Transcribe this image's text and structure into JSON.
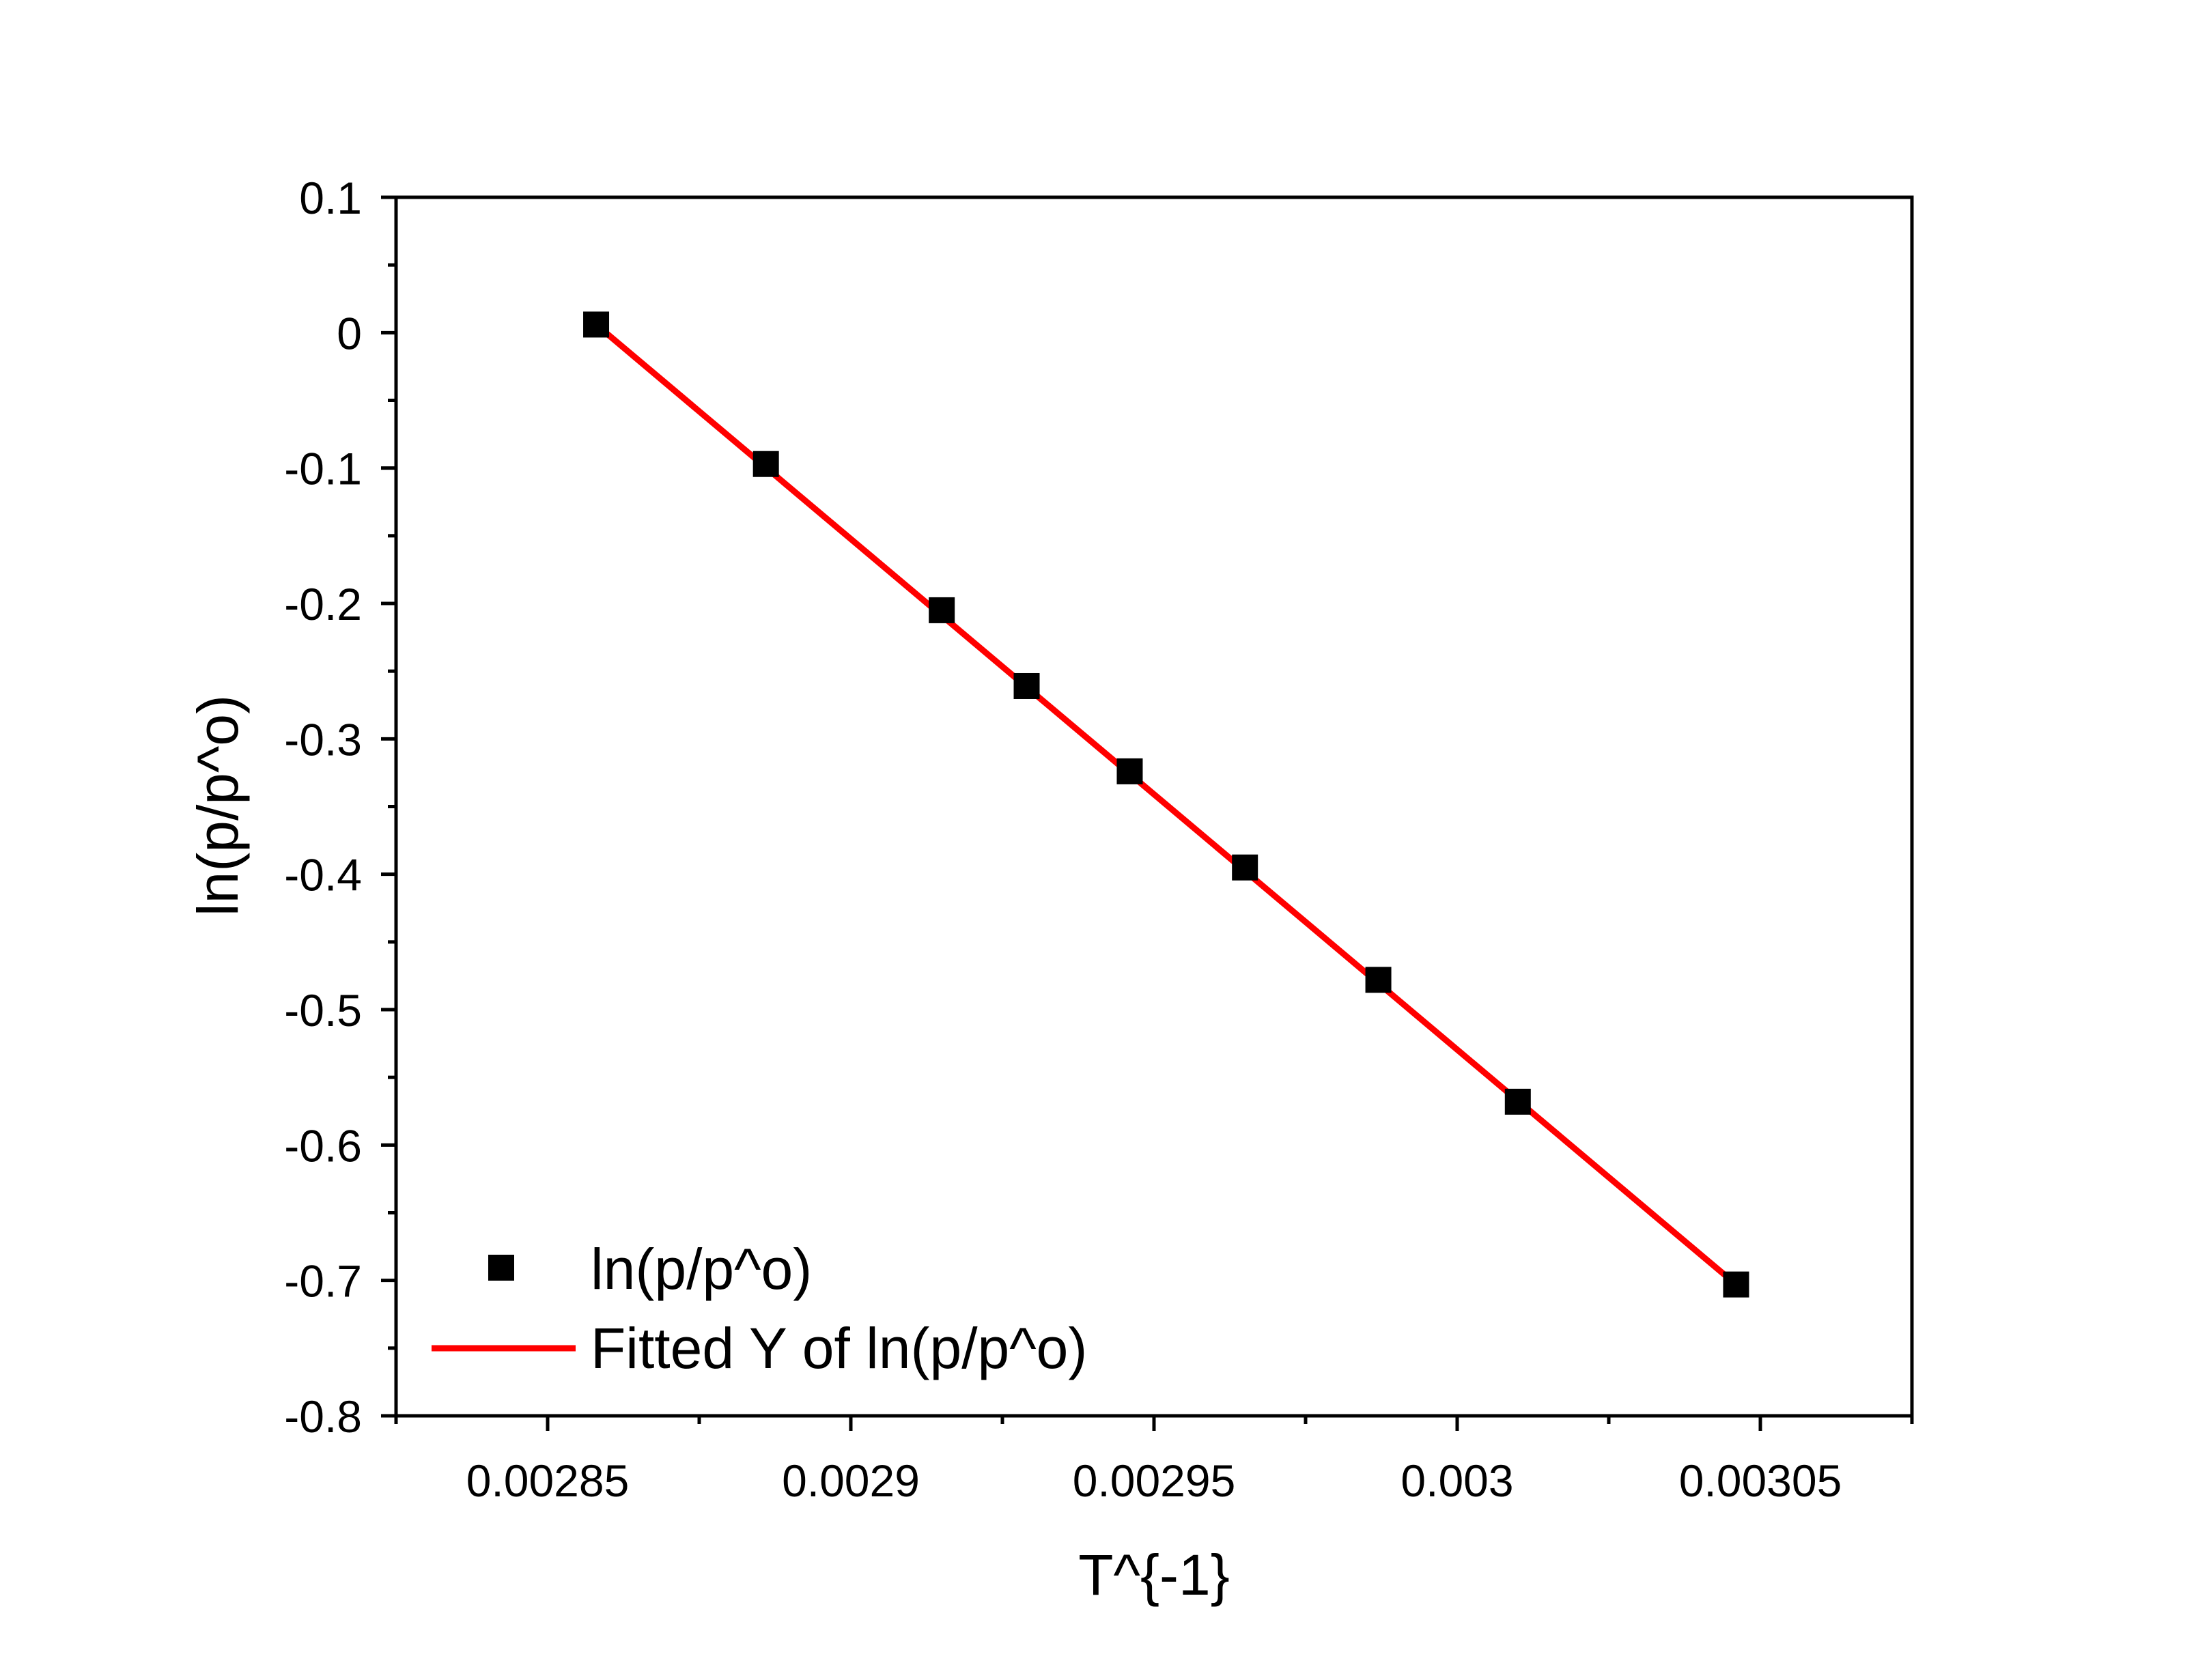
{
  "chart_data": {
    "type": "scatter",
    "xlabel": "T^{-1}",
    "ylabel": "ln(p/p^o)",
    "xlim": [
      0.002825,
      0.003075
    ],
    "ylim": [
      -0.8,
      0.1
    ],
    "xticks": [
      0.00285,
      0.0029,
      0.00295,
      0.003,
      0.00305
    ],
    "xtick_labels": [
      "0.00285",
      "0.0029",
      "0.00295",
      "0.003",
      "0.00305"
    ],
    "yticks": [
      0.1,
      0,
      -0.1,
      -0.2,
      -0.3,
      -0.4,
      -0.5,
      -0.6,
      -0.7,
      -0.8
    ],
    "ytick_labels": [
      "0.1",
      "0",
      "-0.1",
      "-0.2",
      "-0.3",
      "-0.4",
      "-0.5",
      "-0.6",
      "-0.7",
      "-0.8"
    ],
    "grid": false,
    "legend_position": "bottom-left",
    "series": [
      {
        "name": "ln(p/p^o)",
        "kind": "scatter",
        "marker": "square",
        "color": "#000000",
        "x": [
          0.002858,
          0.002886,
          0.002915,
          0.002929,
          0.002946,
          0.002965,
          0.002987,
          0.00301,
          0.003046
        ],
        "y": [
          0.006,
          -0.097,
          -0.205,
          -0.261,
          -0.324,
          -0.395,
          -0.478,
          -0.568,
          -0.703
        ]
      },
      {
        "name": "Fitted Y of ln(p/p^o)",
        "kind": "line",
        "color": "#ff0000",
        "x": [
          0.002858,
          0.003046
        ],
        "y": [
          0.006,
          -0.703
        ]
      }
    ]
  }
}
